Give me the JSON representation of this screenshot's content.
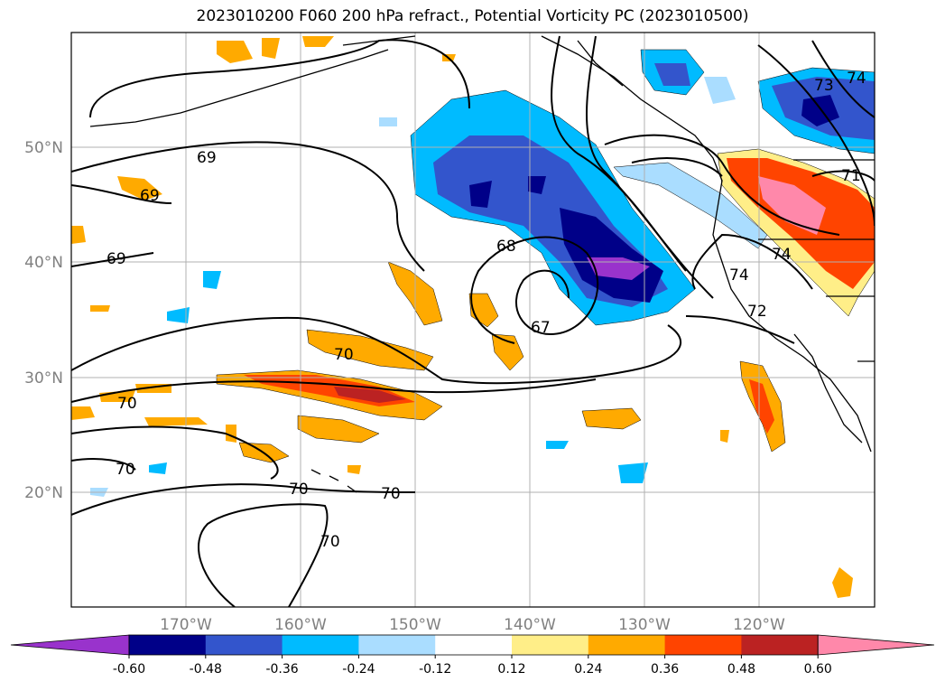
{
  "title": "2023010200 F060 200 hPa refract., Potential Vorticity PC (2023010500)",
  "map": {
    "lat_labels": [
      "50°N",
      "40°N",
      "30°N",
      "20°N"
    ],
    "lon_labels": [
      "170°W",
      "160°W",
      "150°W",
      "140°W",
      "130°W",
      "120°W"
    ],
    "contour_labels": [
      "69",
      "69",
      "69",
      "68",
      "67",
      "70",
      "70",
      "70",
      "70",
      "70",
      "70",
      "72",
      "74",
      "74",
      "73",
      "71",
      "74"
    ]
  },
  "colorbar": {
    "ticks": [
      "-0.60",
      "-0.48",
      "-0.36",
      "-0.24",
      "-0.12",
      "0.12",
      "0.24",
      "0.36",
      "0.48",
      "0.60"
    ],
    "colors": [
      "#9933cc",
      "#000088",
      "#3355cc",
      "#00bbff",
      "#aaddff",
      "#ffffff",
      "#ffee88",
      "#ffaa00",
      "#ff4400",
      "#bb2222",
      "#ff88aa"
    ]
  }
}
